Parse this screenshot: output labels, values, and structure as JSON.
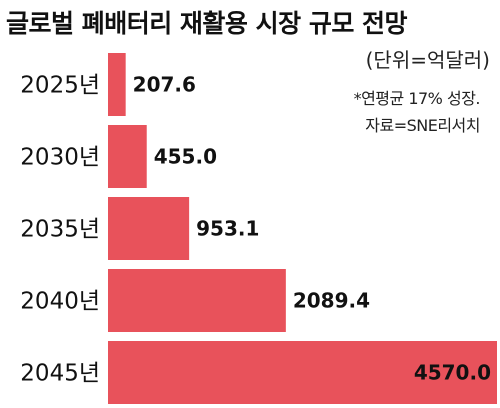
{
  "chart_data": {
    "type": "bar",
    "orientation": "horizontal",
    "title": "글로벌 폐배터리 재활용 시장 규모 전망",
    "unit": "(단위=억달러)",
    "notes": [
      "*연평균 17% 성장.",
      "자료=SNE리서치"
    ],
    "categories": [
      "2025년",
      "2030년",
      "2035년",
      "2040년",
      "2045년"
    ],
    "values": [
      207.6,
      455.0,
      953.1,
      2089.4,
      4570.0
    ],
    "value_labels": [
      "207.6",
      "455.0",
      "953.1",
      "2089.4",
      "4570.0"
    ],
    "bar_color": "#e8525b",
    "last_label_color": "#ffffff",
    "xlim": [
      0,
      4570.0
    ]
  }
}
